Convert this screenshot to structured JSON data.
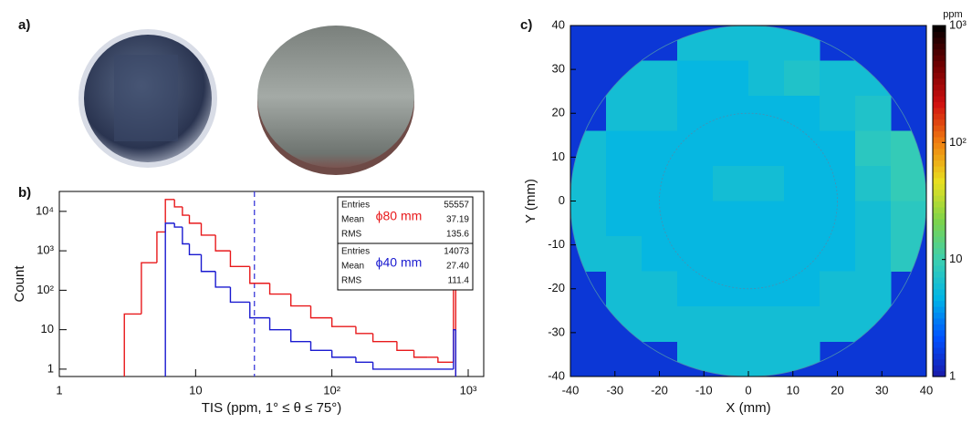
{
  "photo_panel_label": "a)",
  "chart_data": [
    {
      "type": "histogram",
      "title": "b)",
      "xlabel": "TIS (ppm, 1° ≤ θ ≤ 75°)",
      "ylabel": "Count",
      "log_x": true,
      "log_y": true,
      "xlim": [
        1,
        1300
      ],
      "ylim": [
        0.65,
        32000
      ],
      "xticks": [
        1,
        10,
        {
          "value": 100,
          "label": "10²"
        },
        {
          "value": 1000,
          "label": "10³"
        }
      ],
      "yticks": [
        1,
        10,
        {
          "value": 100,
          "label": "10²"
        },
        {
          "value": 1000,
          "label": "10³"
        },
        {
          "value": 10000,
          "label": "10⁴"
        }
      ],
      "vline": 27,
      "series": [
        {
          "name": "ϕ80 mm",
          "color": "#e8191b",
          "bins": [
            3,
            4,
            5.2,
            6,
            7,
            8,
            9,
            11,
            14,
            18,
            25,
            35,
            50,
            70,
            100,
            150,
            200,
            300,
            400,
            500,
            600,
            780,
            810
          ],
          "values": [
            25,
            500,
            3000,
            20000,
            13000,
            8000,
            5000,
            2500,
            1000,
            400,
            150,
            80,
            40,
            20,
            12,
            8,
            5,
            3,
            2,
            2,
            1.5,
            150
          ],
          "stats": [
            [
              "Entries",
              "55557"
            ],
            [
              "Mean",
              "37.19"
            ],
            [
              "RMS",
              "135.6"
            ]
          ]
        },
        {
          "name": "ϕ40 mm",
          "color": "#1a1ad0",
          "bins": [
            6,
            7,
            8,
            9,
            11,
            14,
            18,
            25,
            35,
            50,
            70,
            100,
            150,
            200,
            780,
            810
          ],
          "values": [
            5000,
            4000,
            1500,
            800,
            300,
            120,
            50,
            20,
            10,
            5,
            3,
            2,
            1.5,
            1,
            10
          ],
          "stats": [
            [
              "Entries",
              "14073"
            ],
            [
              "Mean",
              "27.40"
            ],
            [
              "RMS",
              "111.4"
            ]
          ]
        }
      ]
    },
    {
      "type": "heatmap",
      "title": "c)",
      "xlabel": "X (mm)",
      "ylabel": "Y (mm)",
      "xlim": [
        -40,
        40
      ],
      "ylim": [
        -40,
        40
      ],
      "xticks": [
        -40,
        -30,
        -20,
        -10,
        0,
        10,
        20,
        30,
        40
      ],
      "yticks": [
        -40,
        -30,
        -20,
        -10,
        0,
        10,
        20,
        30,
        40
      ],
      "x": [
        -36,
        -28,
        -20,
        -12,
        -4,
        4,
        12,
        20,
        28,
        36
      ],
      "y": [
        36,
        28,
        20,
        12,
        4,
        -4,
        -12,
        -20,
        -28,
        -36
      ],
      "values": [
        [
          null,
          null,
          null,
          6,
          6,
          6,
          6,
          null,
          null,
          null
        ],
        [
          null,
          6,
          6,
          5,
          5,
          6,
          7,
          6,
          6,
          null
        ],
        [
          null,
          6,
          6,
          5,
          5,
          5,
          5,
          6,
          7,
          null
        ],
        [
          6,
          5,
          5,
          5,
          5,
          5,
          5,
          5,
          8,
          9
        ],
        [
          6,
          5,
          5,
          5,
          6,
          6,
          5,
          5,
          7,
          9
        ],
        [
          6,
          5,
          5,
          5,
          5,
          5,
          5,
          5,
          6,
          8
        ],
        [
          6,
          6,
          5,
          5,
          5,
          5,
          5,
          5,
          6,
          8
        ],
        [
          null,
          6,
          6,
          5,
          5,
          5,
          5,
          6,
          6,
          null
        ],
        [
          null,
          6,
          6,
          6,
          6,
          6,
          6,
          6,
          6,
          null
        ],
        [
          null,
          null,
          null,
          6,
          6,
          6,
          6,
          null,
          null,
          null
        ]
      ],
      "outside_value": 1.5,
      "circle_radii": [
        40,
        20
      ],
      "colorbar": {
        "label": "ppm",
        "log": true,
        "lim": [
          1,
          1000
        ],
        "ticks": [
          1,
          10,
          {
            "value": 100,
            "label": "10²"
          },
          {
            "value": 1000,
            "label": "10³"
          }
        ],
        "colors": [
          "#1a1aa8",
          "#0050ff",
          "#00b4e6",
          "#3ccfb0",
          "#7dd34a",
          "#e8e020",
          "#f08010",
          "#d01010",
          "#700000",
          "#000000"
        ]
      }
    }
  ]
}
